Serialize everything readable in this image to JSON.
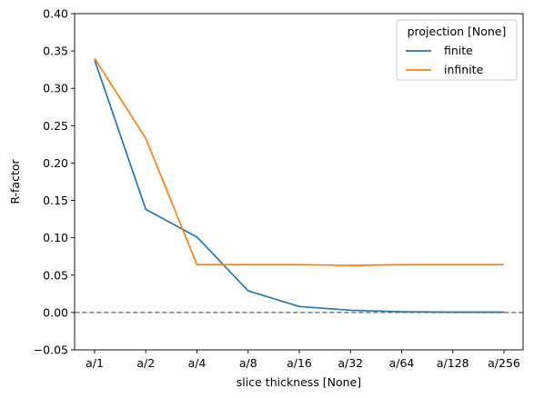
{
  "chart_data": {
    "type": "line",
    "xlabel": "slice thickness [None]",
    "ylabel": "R-factor",
    "categories": [
      "a/1",
      "a/2",
      "a/4",
      "a/8",
      "a/16",
      "a/32",
      "a/64",
      "a/128",
      "a/256"
    ],
    "ylim": [
      -0.05,
      0.4
    ],
    "yticks": [
      -0.05,
      0.0,
      0.05,
      0.1,
      0.15,
      0.2,
      0.25,
      0.3,
      0.35,
      0.4
    ],
    "ytick_labels": [
      "−0.05",
      "0.00",
      "0.05",
      "0.10",
      "0.15",
      "0.20",
      "0.25",
      "0.30",
      "0.35",
      "0.40"
    ],
    "grid": false,
    "reference_line": {
      "y": 0.0,
      "style": "dashed",
      "color": "#808080"
    },
    "legend": {
      "title": "projection [None]",
      "placement": "top-right"
    },
    "series": [
      {
        "name": "finite",
        "color": "#1f77b4",
        "values": [
          0.338,
          0.138,
          0.101,
          0.029,
          0.008,
          0.003,
          0.001,
          0.0005,
          0.0005
        ]
      },
      {
        "name": "infinite",
        "color": "#ff7f0e",
        "values": [
          0.34,
          0.233,
          0.064,
          0.064,
          0.064,
          0.063,
          0.064,
          0.064,
          0.064
        ]
      }
    ]
  }
}
